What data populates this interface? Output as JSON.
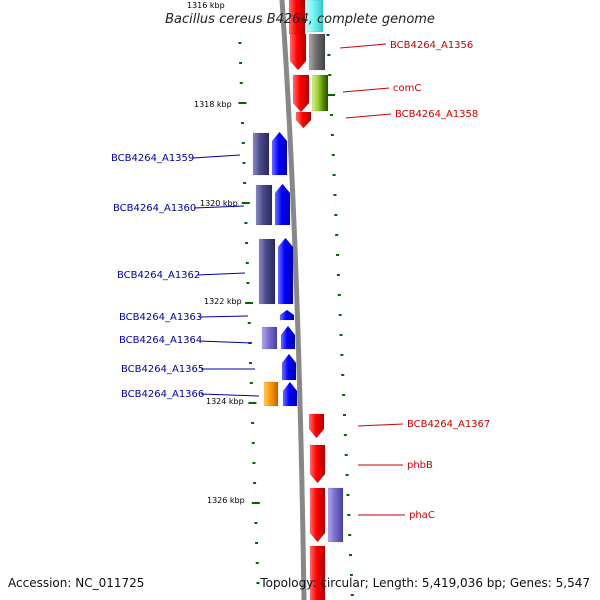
{
  "title": "Bacillus cereus B4264, complete genome",
  "footer": {
    "accession": "Accession: NC_011725",
    "topology": "Topology: circular; Length: 5,419,036 bp; Genes: 5,547"
  },
  "scale_labels": [
    "1316 kbp",
    "1318 kbp",
    "1320 kbp",
    "1322 kbp",
    "1324 kbp",
    "1326 kbp"
  ],
  "colors": {
    "forward_strand_label": "#cc0000",
    "reverse_strand_label": "#0000aa",
    "forward_gene": "#ff0000",
    "reverse_gene": "#0000ff",
    "cog_purple": "#4a4a8a",
    "cog_gray": "#6e6e6e",
    "cog_green": "#99cc33",
    "cog_orange": "#ff9900",
    "cog_lightpurple": "#7a6fd0",
    "cog_cyan": "#66eeee",
    "backbone": "#888888",
    "tick": "#006600"
  },
  "forward_genes": [
    {
      "label": "BCB4264_A1356"
    },
    {
      "label": "comC"
    },
    {
      "label": "BCB4264_A1358"
    },
    {
      "label": "BCB4264_A1367"
    },
    {
      "label": "phbB"
    },
    {
      "label": "phaC"
    }
  ],
  "reverse_genes": [
    {
      "label": "BCB4264_A1359"
    },
    {
      "label": "BCB4264_A1360"
    },
    {
      "label": "BCB4264_A1362"
    },
    {
      "label": "BCB4264_A1363"
    },
    {
      "label": "BCB4264_A1364"
    },
    {
      "label": "BCB4264_A1365"
    },
    {
      "label": "BCB4264_A1366"
    }
  ]
}
